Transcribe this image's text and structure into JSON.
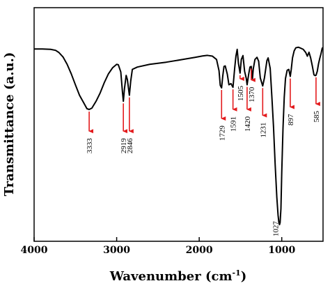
{
  "chart_data": {
    "type": "line",
    "title": "",
    "xlabel": "Wavenumber (cm",
    "xlabel_sup": "-1",
    "xlabel_tail": ")",
    "ylabel": "Transmittance (a.u.)",
    "xlim": [
      4000,
      500
    ],
    "x_reversed": true,
    "y_ticks_shown": false,
    "grid": false,
    "xticks": [
      {
        "value": 4000,
        "label": "4000"
      },
      {
        "value": 3000,
        "label": "3000"
      },
      {
        "value": 2000,
        "label": "2000"
      },
      {
        "value": 1000,
        "label": "1000"
      }
    ],
    "ylim": [
      0,
      100
    ],
    "series": [
      {
        "color": "#000000",
        "points": [
          [
            4000,
            90.6
          ],
          [
            3900,
            90.6
          ],
          [
            3800,
            90.4
          ],
          [
            3740,
            89.9
          ],
          [
            3700,
            88.8
          ],
          [
            3650,
            86.5
          ],
          [
            3600,
            82.7
          ],
          [
            3550,
            77.8
          ],
          [
            3500,
            72.2
          ],
          [
            3450,
            66.8
          ],
          [
            3400,
            63.0
          ],
          [
            3360,
            59.9
          ],
          [
            3333,
            59.5
          ],
          [
            3300,
            60.2
          ],
          [
            3250,
            63.7
          ],
          [
            3200,
            68.0
          ],
          [
            3150,
            73.3
          ],
          [
            3100,
            77.8
          ],
          [
            3050,
            80.9
          ],
          [
            3000,
            82.7
          ],
          [
            2980,
            82.5
          ],
          [
            2950,
            78.8
          ],
          [
            2930,
            68.6
          ],
          [
            2919,
            63.7
          ],
          [
            2905,
            70.4
          ],
          [
            2885,
            77.0
          ],
          [
            2870,
            74.8
          ],
          [
            2846,
            66.8
          ],
          [
            2830,
            74.0
          ],
          [
            2810,
            80.1
          ],
          [
            2750,
            81.3
          ],
          [
            2600,
            82.7
          ],
          [
            2400,
            83.8
          ],
          [
            2200,
            85.2
          ],
          [
            2050,
            86.3
          ],
          [
            1960,
            87.0
          ],
          [
            1900,
            87.3
          ],
          [
            1840,
            86.9
          ],
          [
            1790,
            85.2
          ],
          [
            1760,
            79.4
          ],
          [
            1745,
            71.9
          ],
          [
            1729,
            70.6
          ],
          [
            1715,
            76.6
          ],
          [
            1700,
            81.6
          ],
          [
            1685,
            81.9
          ],
          [
            1660,
            77.7
          ],
          [
            1640,
            72.2
          ],
          [
            1615,
            72.8
          ],
          [
            1591,
            70.9
          ],
          [
            1570,
            80.9
          ],
          [
            1555,
            87.0
          ],
          [
            1540,
            90.4
          ],
          [
            1525,
            83.3
          ],
          [
            1505,
            78.2
          ],
          [
            1490,
            85.2
          ],
          [
            1470,
            87.2
          ],
          [
            1450,
            79.1
          ],
          [
            1430,
            75.5
          ],
          [
            1420,
            72.2
          ],
          [
            1400,
            77.8
          ],
          [
            1385,
            81.3
          ],
          [
            1370,
            81.6
          ],
          [
            1355,
            75.4
          ],
          [
            1345,
            80.4
          ],
          [
            1325,
            85.2
          ],
          [
            1300,
            86.3
          ],
          [
            1280,
            84.3
          ],
          [
            1260,
            75.7
          ],
          [
            1231,
            71.6
          ],
          [
            1210,
            75.7
          ],
          [
            1180,
            84.6
          ],
          [
            1165,
            86.0
          ],
          [
            1140,
            80.6
          ],
          [
            1120,
            66.1
          ],
          [
            1100,
            50.6
          ],
          [
            1080,
            31.2
          ],
          [
            1060,
            14.5
          ],
          [
            1045,
            5.3
          ],
          [
            1035,
            1.4
          ],
          [
            1027,
            0.3
          ],
          [
            1020,
            1.4
          ],
          [
            1010,
            8.6
          ],
          [
            1000,
            27.3
          ],
          [
            985,
            49.8
          ],
          [
            970,
            65.7
          ],
          [
            955,
            75.4
          ],
          [
            935,
            79.6
          ],
          [
            915,
            80.1
          ],
          [
            897,
            76.5
          ],
          [
            885,
            80.1
          ],
          [
            870,
            86.0
          ],
          [
            850,
            89.6
          ],
          [
            830,
            91.2
          ],
          [
            800,
            91.5
          ],
          [
            770,
            91.0
          ],
          [
            740,
            90.4
          ],
          [
            710,
            88.8
          ],
          [
            690,
            86.9
          ],
          [
            670,
            88.9
          ],
          [
            650,
            86.0
          ],
          [
            630,
            81.9
          ],
          [
            610,
            77.3
          ],
          [
            595,
            76.9
          ],
          [
            585,
            77.1
          ],
          [
            570,
            79.1
          ],
          [
            555,
            82.9
          ],
          [
            540,
            85.7
          ],
          [
            525,
            88.1
          ],
          [
            510,
            91.0
          ],
          [
            500,
            91.3
          ]
        ]
      }
    ],
    "annotations": [
      {
        "x": 3333,
        "label": "3333",
        "y_from": 59.5,
        "y_to": 46.2
      },
      {
        "x": 2919,
        "label": "2919",
        "y_from": 63.7,
        "y_to": 46.2
      },
      {
        "x": 2846,
        "label": "2846",
        "y_from": 66.8,
        "y_to": 46.2
      },
      {
        "x": 1729,
        "label": "1729",
        "y_from": 70.6,
        "y_to": 52.7
      },
      {
        "x": 1591,
        "label": "1591",
        "y_from": 70.9,
        "y_to": 57.4
      },
      {
        "x": 1505,
        "label": "1505",
        "y_from": 78.2,
        "y_to": 73.1
      },
      {
        "x": 1420,
        "label": "1420",
        "y_from": 72.2,
        "y_to": 57.4
      },
      {
        "x": 1370,
        "label": "1370",
        "y_from": 81.6,
        "y_to": 72.5
      },
      {
        "x": 1231,
        "label": "1231",
        "y_from": 71.6,
        "y_to": 54.3
      },
      {
        "x": 897,
        "label": "897",
        "y_from": 76.5,
        "y_to": 58.6
      },
      {
        "x": 585,
        "label": "585",
        "y_from": 77.1,
        "y_to": 60.2
      }
    ],
    "annotation_at_minimum": {
      "x": 1027,
      "label": "1027"
    },
    "colors": {
      "line": "#000000",
      "arrow": "#e31a1c",
      "axis": "#000000"
    }
  }
}
